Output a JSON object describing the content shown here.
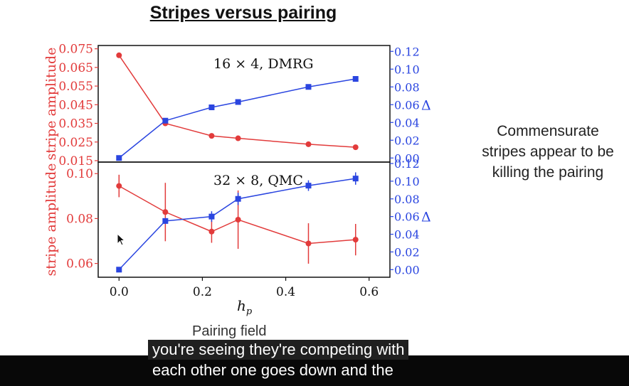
{
  "title": "Stripes versus pairing",
  "side_note": "Commensurate stripes appear to be killing the pairing",
  "pairing_label": "Pairing field",
  "captions": {
    "line1": "you're seeing they're competing with",
    "line2": "each other one goes down and the"
  },
  "colors": {
    "stripe": "#e23b3b",
    "pairing": "#2a45e0",
    "axis": "#111111"
  },
  "chart_data": [
    {
      "type": "line",
      "annotation": "16 × 4, DMRG",
      "x": [
        0.0,
        0.1111,
        0.2222,
        0.2857,
        0.4545,
        0.5676
      ],
      "series": [
        {
          "values": [
            0.0715,
            0.035,
            0.0283,
            0.027,
            0.0238,
            0.0222
          ],
          "axis": "left"
        },
        {
          "values": [
            0.0,
            0.042,
            0.057,
            0.063,
            0.08,
            0.089
          ],
          "axis": "right"
        }
      ],
      "ylabel": "stripe amplitude",
      "y2label": "Δ",
      "ylim": [
        0.015,
        0.076
      ],
      "y2lim": [
        -0.003,
        0.125
      ],
      "yticks": [
        "0.015",
        "0.025",
        "0.035",
        "0.045",
        "0.055",
        "0.065",
        "0.075"
      ],
      "y2ticks": [
        "0.00",
        "0.02",
        "0.04",
        "0.06",
        "0.08",
        "0.10",
        "0.12"
      ]
    },
    {
      "type": "line",
      "annotation": "32 × 8, QMC",
      "x": [
        0.0,
        0.1111,
        0.2222,
        0.2857,
        0.4545,
        0.5676
      ],
      "series": [
        {
          "values": [
            0.0945,
            0.0829,
            0.0742,
            0.0795,
            0.0689,
            0.0706
          ],
          "errors": [
            0.005,
            0.013,
            0.005,
            0.013,
            0.009,
            0.007
          ],
          "axis": "left"
        },
        {
          "values": [
            0.0,
            0.055,
            0.06,
            0.08,
            0.095,
            0.103
          ],
          "errors": [
            0.0,
            0.003,
            0.006,
            0.007,
            0.006,
            0.007
          ],
          "axis": "right"
        }
      ],
      "ylabel": "stripe amplitude",
      "y2label": "Δ",
      "xlabel": "h_p",
      "xticks": [
        "0.0",
        "0.2",
        "0.4",
        "0.6"
      ],
      "xlim": [
        -0.05,
        0.65
      ],
      "ylim": [
        0.0545,
        0.1045
      ],
      "y2lim": [
        -0.007,
        0.12
      ],
      "yticks": [
        "0.06",
        "0.08",
        "0.10"
      ],
      "y2ticks": [
        "0.00",
        "0.02",
        "0.04",
        "0.06",
        "0.08",
        "0.10",
        "0.12"
      ]
    }
  ]
}
